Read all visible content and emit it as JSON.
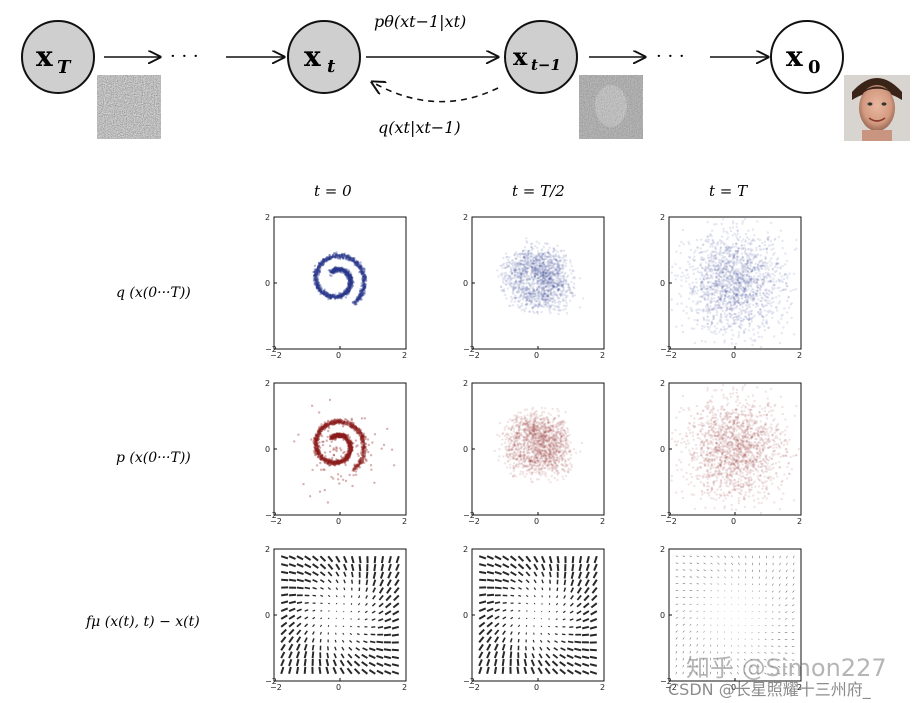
{
  "chain": {
    "nodes": [
      {
        "label": "x",
        "sub": "T",
        "fill": "#cfcfcf"
      },
      {
        "label": "x",
        "sub": "t",
        "fill": "#cfcfcf"
      },
      {
        "label": "x",
        "sub": "t−1",
        "fill": "#cfcfcf"
      },
      {
        "label": "x",
        "sub": "0",
        "fill": "#ffffff"
      }
    ],
    "dots": "· · ·",
    "reverse_label": "pθ(xt−1|xt)",
    "forward_label": "q(xt|xt−1)"
  },
  "grid": {
    "columns": [
      "t = 0",
      "t = T/2",
      "t = T"
    ],
    "rows": [
      "q (x(0···T))",
      "p (x(0···T))",
      "fμ (x(t), t) − x(t)"
    ],
    "tick_values": [
      "−2",
      "0",
      "2"
    ],
    "q_color": "#2b3a8c",
    "p_color": "#8b1e1e"
  },
  "watermark": {
    "zhihu": "知乎 @Simon227",
    "csdn": "CSDN @长星照耀十三州府_"
  }
}
